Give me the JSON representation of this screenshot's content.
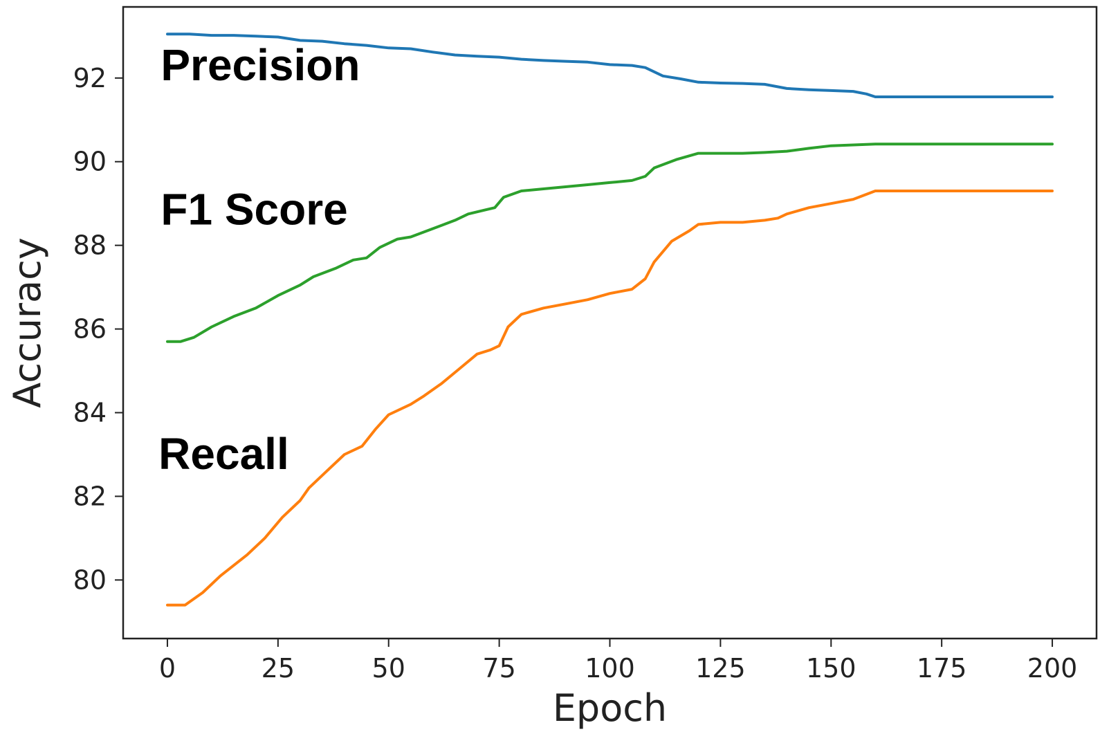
{
  "chart_data": {
    "type": "line",
    "title": "",
    "xlabel": "Epoch",
    "ylabel": "Accuracy",
    "xlim": [
      -10,
      210
    ],
    "ylim": [
      78.6,
      93.7
    ],
    "xticks": [
      0,
      25,
      50,
      75,
      100,
      125,
      150,
      175,
      200
    ],
    "yticks": [
      80,
      82,
      84,
      86,
      88,
      90,
      92
    ],
    "grid": false,
    "series": [
      {
        "name": "Precision",
        "color": "#1f77b4",
        "x": [
          0,
          5,
          10,
          15,
          20,
          25,
          30,
          35,
          40,
          45,
          50,
          55,
          60,
          65,
          70,
          75,
          80,
          85,
          90,
          95,
          100,
          105,
          108,
          112,
          116,
          120,
          125,
          130,
          135,
          140,
          145,
          150,
          155,
          158,
          160,
          170,
          180,
          190,
          200
        ],
        "y": [
          93.05,
          93.05,
          93.02,
          93.02,
          93.0,
          92.98,
          92.9,
          92.88,
          92.82,
          92.78,
          92.72,
          92.7,
          92.62,
          92.55,
          92.52,
          92.5,
          92.45,
          92.42,
          92.4,
          92.38,
          92.32,
          92.3,
          92.25,
          92.05,
          91.98,
          91.9,
          91.88,
          91.87,
          91.85,
          91.75,
          91.72,
          91.7,
          91.68,
          91.62,
          91.55,
          91.55,
          91.55,
          91.55,
          91.55
        ]
      },
      {
        "name": "F1 Score",
        "color": "#2ca02c",
        "x": [
          0,
          3,
          6,
          10,
          15,
          20,
          25,
          30,
          33,
          38,
          42,
          45,
          48,
          52,
          55,
          60,
          65,
          68,
          72,
          74,
          76,
          80,
          85,
          90,
          95,
          100,
          105,
          108,
          110,
          115,
          120,
          125,
          130,
          135,
          140,
          145,
          150,
          155,
          160,
          170,
          180,
          190,
          200
        ],
        "y": [
          85.7,
          85.7,
          85.8,
          86.05,
          86.3,
          86.5,
          86.8,
          87.05,
          87.25,
          87.45,
          87.65,
          87.7,
          87.95,
          88.15,
          88.2,
          88.4,
          88.6,
          88.75,
          88.85,
          88.9,
          89.15,
          89.3,
          89.35,
          89.4,
          89.45,
          89.5,
          89.55,
          89.65,
          89.85,
          90.05,
          90.2,
          90.2,
          90.2,
          90.22,
          90.25,
          90.32,
          90.38,
          90.4,
          90.42,
          90.42,
          90.42,
          90.42,
          90.42
        ]
      },
      {
        "name": "Recall",
        "color": "#ff7f0e",
        "x": [
          0,
          4,
          8,
          12,
          18,
          22,
          26,
          30,
          32,
          36,
          40,
          44,
          47,
          50,
          55,
          58,
          62,
          66,
          70,
          73,
          75,
          77,
          80,
          85,
          90,
          95,
          100,
          105,
          108,
          110,
          114,
          118,
          120,
          125,
          130,
          135,
          138,
          140,
          145,
          150,
          155,
          160,
          170,
          180,
          190,
          200
        ],
        "y": [
          79.4,
          79.4,
          79.7,
          80.1,
          80.6,
          81.0,
          81.5,
          81.9,
          82.2,
          82.6,
          83.0,
          83.2,
          83.6,
          83.95,
          84.2,
          84.4,
          84.7,
          85.05,
          85.4,
          85.5,
          85.6,
          86.05,
          86.35,
          86.5,
          86.6,
          86.7,
          86.85,
          86.95,
          87.2,
          87.6,
          88.1,
          88.35,
          88.5,
          88.55,
          88.55,
          88.6,
          88.65,
          88.75,
          88.9,
          89.0,
          89.1,
          89.3,
          89.3,
          89.3,
          89.3,
          89.3
        ]
      }
    ],
    "annotations": [
      {
        "text": "Precision",
        "x": -1.5,
        "y": 91.95
      },
      {
        "text": "F1 Score",
        "x": -1.5,
        "y": 88.5
      },
      {
        "text": "Recall",
        "x": -2,
        "y": 82.65
      }
    ]
  }
}
